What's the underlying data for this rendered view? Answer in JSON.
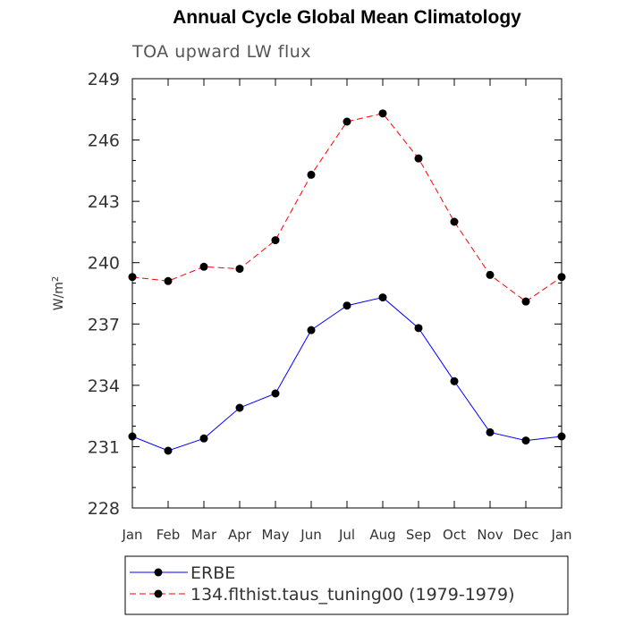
{
  "chart_data": {
    "type": "line",
    "title": "Annual Cycle Global Mean Climatology",
    "subtitle": "TOA upward LW flux",
    "xlabel": "",
    "ylabel": "W/m",
    "ylabel_superscript": "2",
    "categories": [
      "Jan",
      "Feb",
      "Mar",
      "Apr",
      "May",
      "Jun",
      "Jul",
      "Aug",
      "Sep",
      "Oct",
      "Nov",
      "Dec",
      "Jan"
    ],
    "ylim": [
      228,
      249
    ],
    "yticks": [
      228,
      231,
      234,
      237,
      240,
      243,
      246,
      249
    ],
    "series": [
      {
        "name": "ERBE",
        "color": "#0000ff",
        "dash": "solid",
        "values": [
          231.5,
          230.8,
          231.4,
          232.9,
          233.6,
          236.7,
          237.9,
          238.3,
          236.8,
          234.2,
          231.7,
          231.3,
          231.5
        ]
      },
      {
        "name": "134.flthist.taus_tuning00 (1979-1979)",
        "color": "#ff0000",
        "dash": "dashed",
        "values": [
          239.3,
          239.1,
          239.8,
          239.7,
          241.1,
          244.3,
          246.9,
          247.3,
          245.1,
          242.0,
          239.4,
          238.1,
          239.3
        ]
      }
    ]
  }
}
